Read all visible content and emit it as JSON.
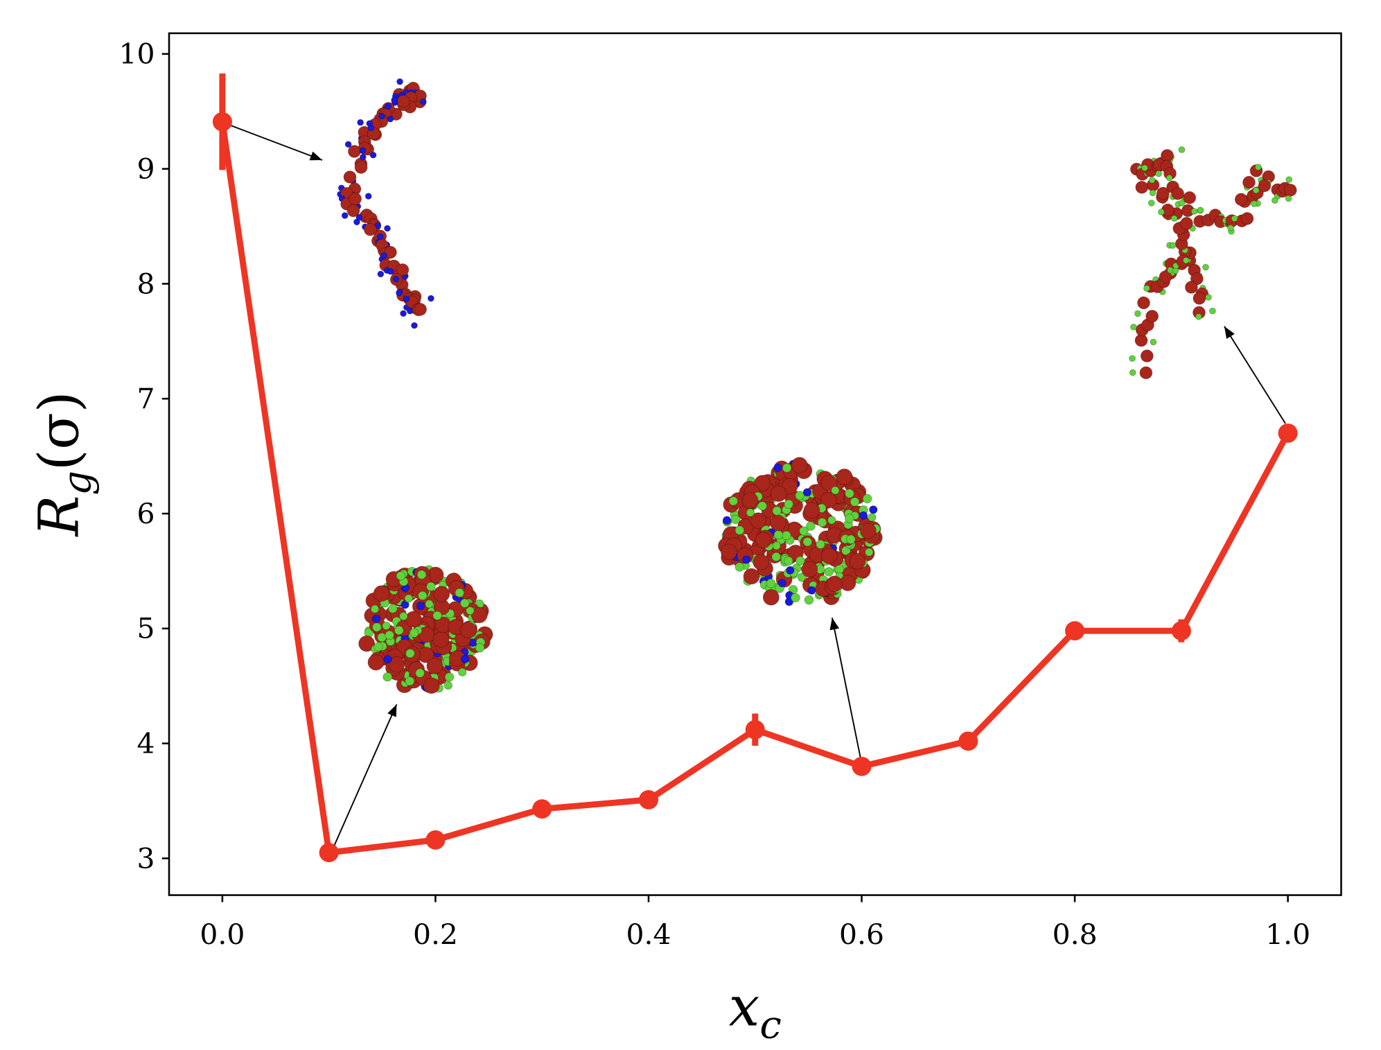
{
  "chart_data": {
    "type": "line",
    "xlabel": {
      "base": "x",
      "sub": "c"
    },
    "ylabel": {
      "base": "R",
      "sub": "g",
      "rest": "(σ)"
    },
    "x": [
      0.0,
      0.1,
      0.2,
      0.3,
      0.4,
      0.5,
      0.6,
      0.7,
      0.8,
      0.9,
      1.0
    ],
    "series": [
      {
        "color": "#ee3524",
        "values": [
          9.41,
          3.05,
          3.16,
          3.43,
          3.51,
          4.12,
          3.8,
          4.02,
          4.98,
          4.98,
          6.7
        ],
        "errors": [
          0.42,
          0.02,
          0.02,
          0.02,
          0.02,
          0.14,
          0.02,
          0.02,
          0.03,
          0.1,
          0.05
        ]
      }
    ],
    "xlim": [
      -0.05,
      1.05
    ],
    "ylim": [
      2.68,
      10.18
    ],
    "xticks": [
      {
        "value": 0,
        "label": "0.0"
      },
      0.2,
      0.4,
      0.6,
      0.8,
      {
        "value": 1,
        "label": "1.0"
      }
    ],
    "yticks": [
      3,
      4,
      5,
      6,
      7,
      8,
      9,
      10
    ],
    "grid": false
  }
}
